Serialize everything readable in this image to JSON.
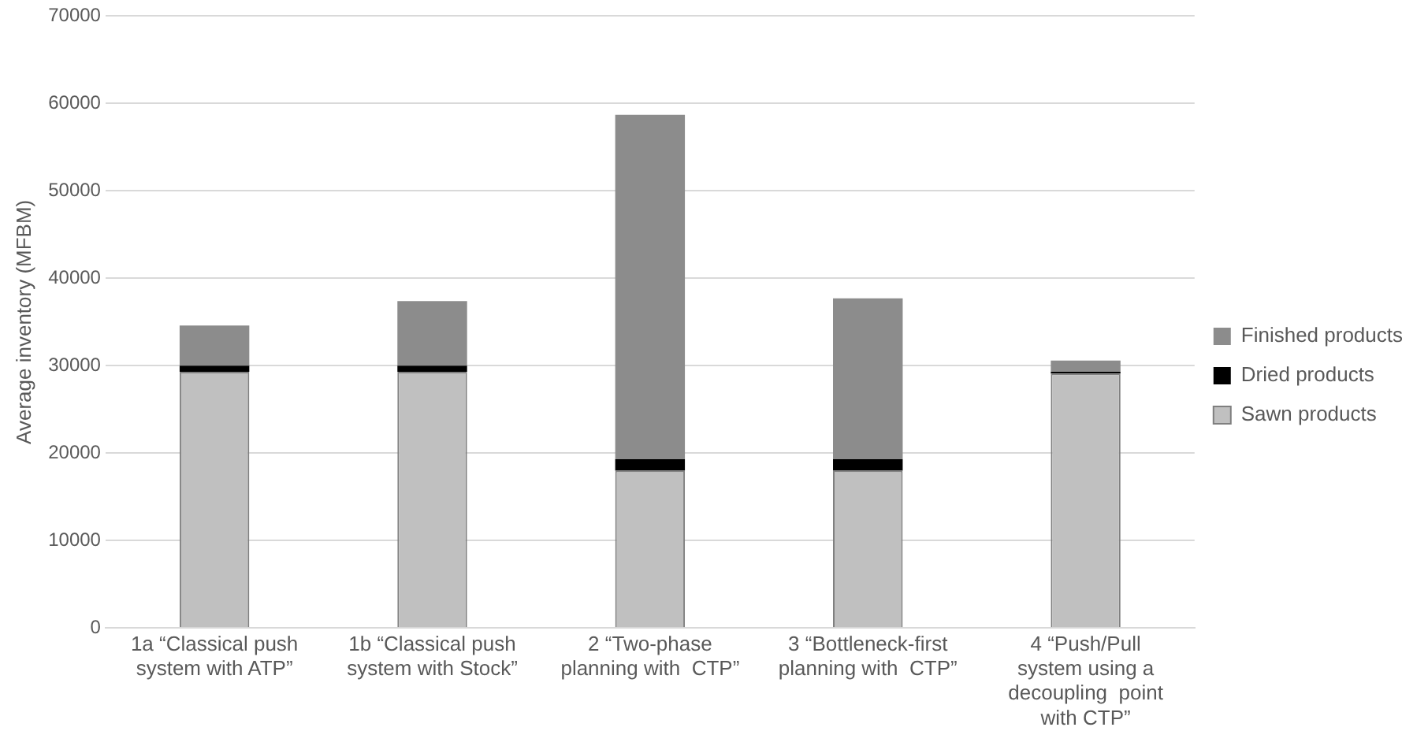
{
  "chart_data": {
    "type": "bar",
    "stacked": true,
    "ylabel": "Average inventory (MFBM)",
    "categories": [
      "1a “Classical push\nsystem with ATP”",
      "1b “Classical push\nsystem with Stock”",
      "2 “Two-phase\nplanning with  CTP”",
      "3 “Bottleneck-first\nplanning with  CTP”",
      "4 “Push/Pull\nsystem using a\ndecoupling  point\nwith CTP”"
    ],
    "series": [
      {
        "name": "Sawn products",
        "color": "#c0c0c0",
        "values": [
          29300,
          29300,
          18000,
          18000,
          29100
        ]
      },
      {
        "name": "Dried products",
        "color": "#000000",
        "values": [
          700,
          700,
          1300,
          1300,
          200
        ]
      },
      {
        "name": "Finished products",
        "color": "#8c8c8c",
        "values": [
          4600,
          7400,
          39400,
          18400,
          1300
        ]
      }
    ],
    "ylim": [
      0,
      70000
    ],
    "yticks": [
      0,
      10000,
      20000,
      30000,
      40000,
      50000,
      60000,
      70000
    ],
    "grid": "y",
    "legend": "right"
  }
}
